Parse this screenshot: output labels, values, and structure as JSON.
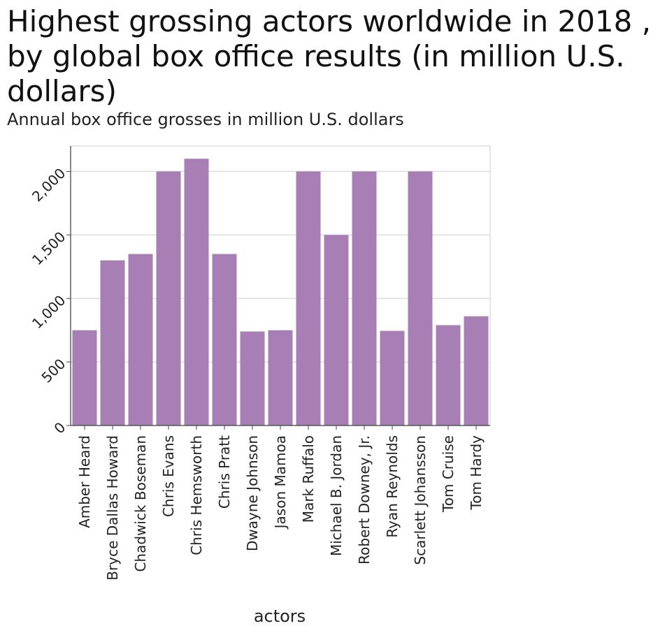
{
  "chart_data": {
    "type": "bar",
    "title": "Highest grossing actors worldwide in 2018 , by global box office results (in million U.S. dollars)",
    "subtitle": "Annual box office grosses in million U.S. dollars",
    "xlabel": "actors",
    "ylabel": "",
    "categories": [
      "Amber Heard",
      "Bryce Dallas Howard",
      "Chadwick Boseman",
      "Chris Evans",
      "Chris Hemsworth",
      "Chris Pratt",
      "Dwayne Johnson",
      "Jason Mamoa",
      "Mark Ruffalo",
      "Michael B. Jordan",
      "Robert Downey, Jr.",
      "Ryan Reynolds",
      "Scarlett Johansson",
      "Tom Cruise",
      "Tom Hardy"
    ],
    "values": [
      750,
      1300,
      1350,
      2000,
      2100,
      1350,
      740,
      750,
      2000,
      1500,
      2000,
      745,
      2000,
      790,
      860
    ],
    "ylim": [
      0,
      2200
    ],
    "yticks": [
      0,
      500,
      1000,
      1500,
      2000
    ],
    "ytick_labels": [
      "0",
      "500",
      "1,000",
      "1,500",
      "2,000"
    ],
    "grid": true,
    "bar_color": "#a87fb5"
  }
}
